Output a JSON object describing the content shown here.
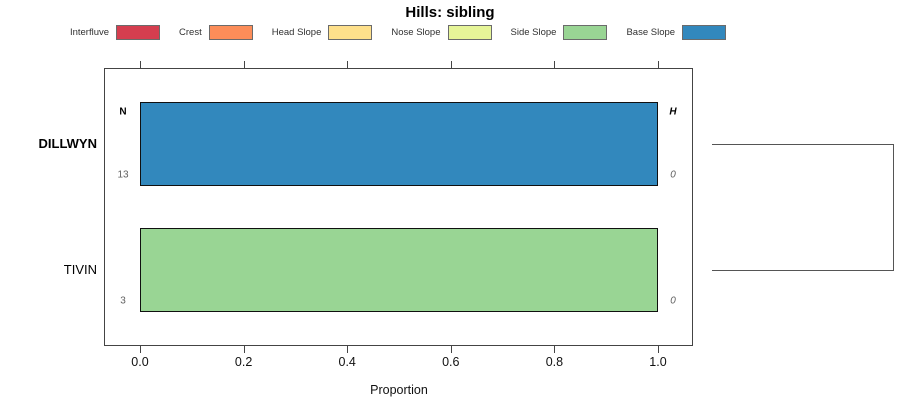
{
  "title": "Hills: sibling",
  "legend": {
    "items": [
      {
        "label": "Interfluve",
        "color": "#D53E4F"
      },
      {
        "label": "Crest",
        "color": "#FC8D59"
      },
      {
        "label": "Head Slope",
        "color": "#FEE08B"
      },
      {
        "label": "Nose Slope",
        "color": "#E6F598"
      },
      {
        "label": "Side Slope",
        "color": "#99D594"
      },
      {
        "label": "Base Slope",
        "color": "#3288BD"
      }
    ]
  },
  "chart_data": {
    "type": "bar",
    "orientation": "horizontal",
    "stacked": true,
    "title": "Hills: sibling",
    "xlabel": "Proportion",
    "xlim": [
      0,
      1
    ],
    "xticks": [
      0.0,
      0.2,
      0.4,
      0.6,
      0.8,
      1.0
    ],
    "xtick_labels": [
      "0.0",
      "0.2",
      "0.4",
      "0.6",
      "0.8",
      "1.0"
    ],
    "categories": [
      "DILLWYN",
      "TIVIN"
    ],
    "series": [
      {
        "name": "Interfluve",
        "color": "#D53E4F",
        "values": [
          0,
          0
        ]
      },
      {
        "name": "Crest",
        "color": "#FC8D59",
        "values": [
          0,
          0
        ]
      },
      {
        "name": "Head Slope",
        "color": "#FEE08B",
        "values": [
          0,
          0
        ]
      },
      {
        "name": "Nose Slope",
        "color": "#E6F598",
        "values": [
          0,
          0
        ]
      },
      {
        "name": "Side Slope",
        "color": "#99D594",
        "values": [
          0,
          1.0
        ]
      },
      {
        "name": "Base Slope",
        "color": "#3288BD",
        "values": [
          1.0,
          0
        ]
      }
    ],
    "column_headers": {
      "n": "N",
      "h": "H"
    },
    "rows": [
      {
        "label": "DILLWYN",
        "label_bold": true,
        "n_count": "13",
        "h_value": "0",
        "segments": [
          {
            "name": "Base Slope",
            "color": "#3288BD",
            "value": 1.0
          }
        ]
      },
      {
        "label": "TIVIN",
        "label_bold": false,
        "n_count": "3",
        "h_value": "0",
        "segments": [
          {
            "name": "Side Slope",
            "color": "#99D594",
            "value": 1.0
          }
        ]
      }
    ],
    "legend_position": "top",
    "grid": false,
    "dendrogram": {
      "present": true,
      "leaves": [
        "DILLWYN",
        "TIVIN"
      ]
    }
  }
}
